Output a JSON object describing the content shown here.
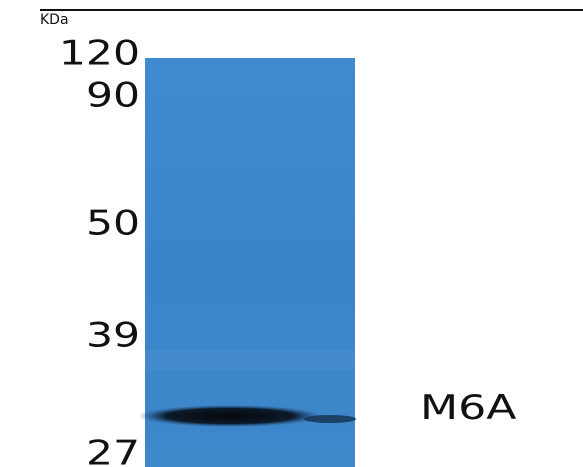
{
  "unit": "KDa",
  "markers": [
    "120",
    "90",
    "50",
    "39",
    "27"
  ],
  "band_label": "M6A"
}
